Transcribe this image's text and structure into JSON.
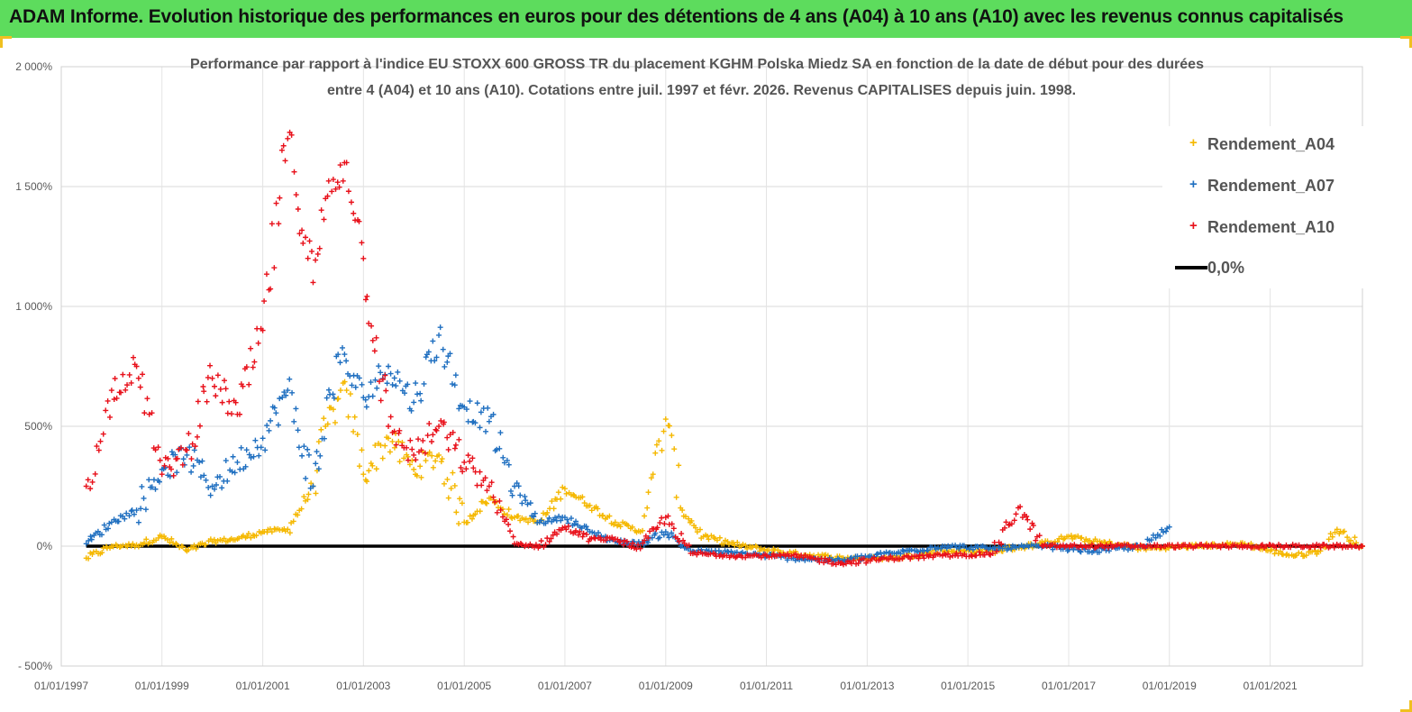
{
  "banner": {
    "title": "ADAM Informe. Evolution historique des performances en euros pour des détentions de 4 ans (A04) à 10 ans (A10) avec les revenus connus capitalisés",
    "color": "#5ddc5d"
  },
  "chart_data": {
    "type": "scatter",
    "subtitle_line1": "Performance par rapport à l'indice EU STOXX 600 GROSS TR  du placement KGHM Polska Miedz SA en fonction de la date de début pour des durées",
    "subtitle_line2": "entre 4 (A04) et 10 ans (A10). Cotations entre juil. 1997 et févr. 2026. Revenus CAPITALISES depuis juin. 1998.",
    "x_axis": {
      "type": "date",
      "range": [
        "1997-01-01",
        "2022-11-01"
      ],
      "tick_labels": [
        "01/01/1997",
        "01/01/1999",
        "01/01/2001",
        "01/01/2003",
        "01/01/2005",
        "01/01/2007",
        "01/01/2009",
        "01/01/2011",
        "01/01/2013",
        "01/01/2015",
        "01/01/2017",
        "01/01/2019",
        "01/01/2021"
      ]
    },
    "y_axis": {
      "range": [
        -500,
        2000
      ],
      "unit": "%",
      "tick_values": [
        -500,
        0,
        500,
        1000,
        1500,
        2000
      ],
      "tick_labels": [
        "- 500%",
        "0%",
        "500%",
        "1 000%",
        "1 500%",
        "2 000%"
      ],
      "grid": true
    },
    "legend_position": "top-right",
    "series": [
      {
        "name": "Rendement_A04",
        "color": "#f5b800",
        "marker": "plus",
        "points": [
          [
            "1997-07-01",
            -50
          ],
          [
            "1998-01-01",
            0
          ],
          [
            "1998-07-01",
            5
          ],
          [
            "1999-01-01",
            40
          ],
          [
            "1999-07-01",
            -20
          ],
          [
            "2000-01-01",
            20
          ],
          [
            "2000-07-01",
            30
          ],
          [
            "2001-01-01",
            60
          ],
          [
            "2001-07-01",
            70
          ],
          [
            "2002-01-01",
            250
          ],
          [
            "2002-04-01",
            500
          ],
          [
            "2002-09-01",
            650
          ],
          [
            "2003-01-01",
            300
          ],
          [
            "2003-07-01",
            450
          ],
          [
            "2004-01-01",
            320
          ],
          [
            "2004-07-01",
            380
          ],
          [
            "2005-01-01",
            100
          ],
          [
            "2005-07-01",
            200
          ],
          [
            "2006-01-01",
            120
          ],
          [
            "2006-07-01",
            100
          ],
          [
            "2007-01-01",
            240
          ],
          [
            "2007-07-01",
            170
          ],
          [
            "2008-01-01",
            100
          ],
          [
            "2008-07-01",
            60
          ],
          [
            "2008-10-01",
            300
          ],
          [
            "2009-01-01",
            530
          ],
          [
            "2009-05-01",
            150
          ],
          [
            "2009-10-01",
            40
          ],
          [
            "2010-07-01",
            0
          ],
          [
            "2011-07-01",
            -30
          ],
          [
            "2012-07-01",
            -50
          ],
          [
            "2013-07-01",
            -50
          ],
          [
            "2014-07-01",
            -20
          ],
          [
            "2015-07-01",
            -20
          ],
          [
            "2016-07-01",
            10
          ],
          [
            "2017-01-01",
            40
          ],
          [
            "2017-07-01",
            20
          ],
          [
            "2018-07-01",
            -10
          ],
          [
            "2019-07-01",
            0
          ],
          [
            "2020-07-01",
            10
          ],
          [
            "2021-01-01",
            -20
          ],
          [
            "2021-07-01",
            -40
          ],
          [
            "2022-01-01",
            -20
          ],
          [
            "2022-05-01",
            70
          ],
          [
            "2022-11-01",
            0
          ]
        ]
      },
      {
        "name": "Rendement_A07",
        "color": "#1f6fc0",
        "marker": "plus",
        "points": [
          [
            "1997-07-01",
            10
          ],
          [
            "1998-01-01",
            100
          ],
          [
            "1998-07-01",
            150
          ],
          [
            "1999-01-01",
            320
          ],
          [
            "1999-07-01",
            380
          ],
          [
            "2000-01-01",
            250
          ],
          [
            "2000-07-01",
            350
          ],
          [
            "2001-01-01",
            450
          ],
          [
            "2001-07-01",
            650
          ],
          [
            "2002-01-01",
            250
          ],
          [
            "2002-07-01",
            800
          ],
          [
            "2003-01-01",
            620
          ],
          [
            "2003-07-01",
            750
          ],
          [
            "2004-01-01",
            600
          ],
          [
            "2004-07-01",
            880
          ],
          [
            "2005-01-01",
            580
          ],
          [
            "2005-07-01",
            520
          ],
          [
            "2006-01-01",
            250
          ],
          [
            "2006-07-01",
            100
          ],
          [
            "2007-01-01",
            120
          ],
          [
            "2007-07-01",
            60
          ],
          [
            "2008-01-01",
            20
          ],
          [
            "2008-07-01",
            10
          ],
          [
            "2009-01-01",
            60
          ],
          [
            "2009-07-01",
            -20
          ],
          [
            "2010-07-01",
            -30
          ],
          [
            "2011-07-01",
            -50
          ],
          [
            "2012-07-01",
            -60
          ],
          [
            "2013-07-01",
            -30
          ],
          [
            "2014-07-01",
            0
          ],
          [
            "2015-07-01",
            -10
          ],
          [
            "2016-07-01",
            0
          ],
          [
            "2017-07-01",
            -20
          ],
          [
            "2018-07-01",
            0
          ],
          [
            "2019-01-01",
            80
          ]
        ]
      },
      {
        "name": "Rendement_A10",
        "color": "#e8101a",
        "marker": "plus",
        "points": [
          [
            "1997-07-01",
            250
          ],
          [
            "1997-10-01",
            400
          ],
          [
            "1998-01-01",
            650
          ],
          [
            "1998-07-01",
            750
          ],
          [
            "1998-10-01",
            550
          ],
          [
            "1999-01-01",
            300
          ],
          [
            "1999-07-01",
            400
          ],
          [
            "2000-01-01",
            700
          ],
          [
            "2000-07-01",
            550
          ],
          [
            "2001-01-01",
            900
          ],
          [
            "2001-07-01",
            1700
          ],
          [
            "2002-01-01",
            1100
          ],
          [
            "2002-04-01",
            1450
          ],
          [
            "2002-09-01",
            1600
          ],
          [
            "2003-01-01",
            1200
          ],
          [
            "2003-07-01",
            500
          ],
          [
            "2004-01-01",
            380
          ],
          [
            "2004-07-01",
            500
          ],
          [
            "2005-01-01",
            350
          ],
          [
            "2005-07-01",
            250
          ],
          [
            "2006-01-01",
            10
          ],
          [
            "2006-07-01",
            0
          ],
          [
            "2007-01-01",
            80
          ],
          [
            "2007-07-01",
            30
          ],
          [
            "2008-01-01",
            30
          ],
          [
            "2008-07-01",
            -10
          ],
          [
            "2009-01-01",
            120
          ],
          [
            "2009-07-01",
            -30
          ],
          [
            "2010-07-01",
            -40
          ],
          [
            "2011-07-01",
            -40
          ],
          [
            "2012-07-01",
            -70
          ],
          [
            "2013-07-01",
            -50
          ],
          [
            "2014-07-01",
            -40
          ],
          [
            "2015-07-01",
            -30
          ],
          [
            "2016-01-01",
            160
          ],
          [
            "2016-07-01",
            0
          ],
          [
            "2018-07-01",
            0
          ],
          [
            "2020-07-01",
            0
          ],
          [
            "2022-11-01",
            0
          ]
        ]
      },
      {
        "name": "0,0%",
        "color": "#000000",
        "marker": "line",
        "points": [
          [
            "1997-07-01",
            0
          ],
          [
            "2022-11-01",
            0
          ]
        ]
      }
    ]
  }
}
